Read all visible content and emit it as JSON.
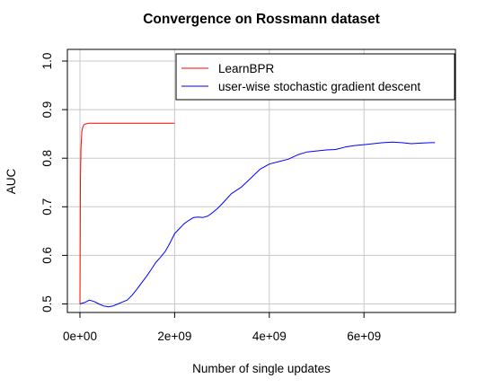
{
  "chart_data": {
    "type": "line",
    "title": "Convergence on Rossmann dataset",
    "xlabel": "Number of single updates",
    "ylabel": "AUC",
    "xlim": [
      0,
      7600000000
    ],
    "ylim": [
      0.5,
      1.0
    ],
    "x_ticks": [
      0,
      2000000000,
      4000000000,
      6000000000
    ],
    "x_tick_labels": [
      "0e+00",
      "2e+09",
      "4e+09",
      "6e+09"
    ],
    "y_ticks": [
      0.5,
      0.6,
      0.7,
      0.8,
      0.9,
      1.0
    ],
    "y_tick_labels": [
      "0.5",
      "0.6",
      "0.7",
      "0.8",
      "0.9",
      "1.0"
    ],
    "grid": true,
    "legend_position": "top-right",
    "colors": {
      "LearnBPR": "#ff0000",
      "user-wise stochastic gradient descent": "#0000ff"
    },
    "series": [
      {
        "name": "LearnBPR",
        "color": "#ff0000",
        "x": [
          0,
          10000000,
          20000000,
          40000000,
          60000000,
          80000000,
          100000000,
          150000000,
          200000000,
          300000000,
          500000000,
          1000000000,
          1500000000,
          2000000000
        ],
        "y": [
          0.5,
          0.75,
          0.82,
          0.855,
          0.864,
          0.868,
          0.87,
          0.871,
          0.872,
          0.872,
          0.872,
          0.872,
          0.872,
          0.872
        ]
      },
      {
        "name": "user-wise stochastic gradient descent",
        "color": "#0000ff",
        "x": [
          0,
          100000000,
          200000000,
          300000000,
          400000000,
          500000000,
          600000000,
          700000000,
          800000000,
          900000000,
          1000000000,
          1100000000,
          1200000000,
          1300000000,
          1400000000,
          1500000000,
          1600000000,
          1700000000,
          1800000000,
          1900000000,
          2000000000,
          2100000000,
          2200000000,
          2300000000,
          2400000000,
          2500000000,
          2600000000,
          2700000000,
          2800000000,
          2900000000,
          3000000000,
          3200000000,
          3400000000,
          3600000000,
          3800000000,
          4000000000,
          4200000000,
          4400000000,
          4600000000,
          4800000000,
          5000000000,
          5200000000,
          5400000000,
          5600000000,
          5800000000,
          6000000000,
          6200000000,
          6400000000,
          6600000000,
          6800000000,
          7000000000,
          7200000000,
          7400000000,
          7500000000
        ],
        "y": [
          0.5,
          0.503,
          0.508,
          0.505,
          0.5,
          0.496,
          0.494,
          0.496,
          0.5,
          0.504,
          0.508,
          0.518,
          0.53,
          0.543,
          0.556,
          0.57,
          0.585,
          0.596,
          0.608,
          0.625,
          0.645,
          0.655,
          0.665,
          0.672,
          0.678,
          0.679,
          0.678,
          0.681,
          0.688,
          0.696,
          0.706,
          0.727,
          0.74,
          0.758,
          0.777,
          0.788,
          0.793,
          0.798,
          0.807,
          0.813,
          0.815,
          0.817,
          0.818,
          0.823,
          0.826,
          0.828,
          0.83,
          0.832,
          0.833,
          0.832,
          0.83,
          0.831,
          0.832,
          0.832
        ]
      }
    ]
  }
}
